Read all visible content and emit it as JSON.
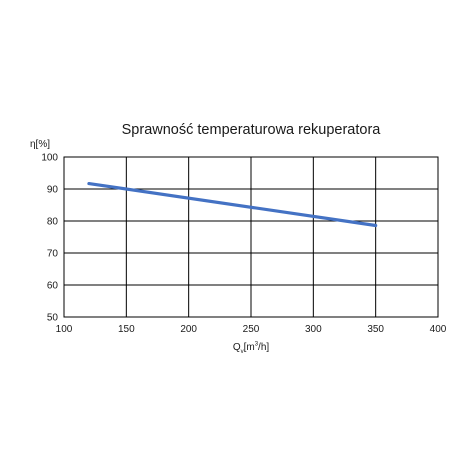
{
  "chart_data": {
    "type": "line",
    "title": "Sprawność temperaturowa rekuperatora",
    "ylabel": "η[%]",
    "xlabel_prefix": "Q",
    "xlabel_sub": "v",
    "xlabel_mid": "[m",
    "xlabel_sup": "3",
    "xlabel_suffix": "/h]",
    "xlim": [
      100,
      400
    ],
    "ylim": [
      50,
      100
    ],
    "xticks": [
      100,
      150,
      200,
      250,
      300,
      350,
      400
    ],
    "yticks": [
      50,
      60,
      70,
      80,
      90,
      100
    ],
    "grid": true,
    "series": [
      {
        "color": "#4472c4",
        "x": [
          120,
          350
        ],
        "y": [
          91.7,
          78.6
        ]
      }
    ]
  }
}
